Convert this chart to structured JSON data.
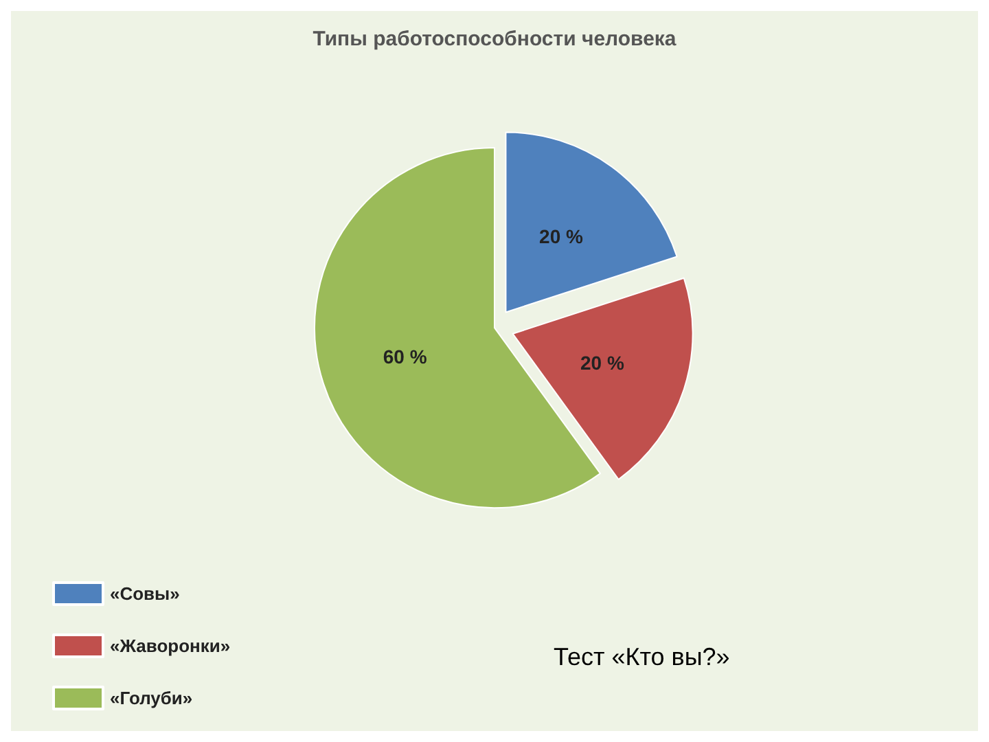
{
  "chart_data": {
    "type": "pie",
    "title": "Типы работоспособности человека",
    "categories": [
      "«Совы»",
      "«Жаворонки»",
      "«Голуби»"
    ],
    "values": [
      20,
      20,
      60
    ],
    "colors": [
      "#4f81bd",
      "#c0504d",
      "#9bbb59"
    ],
    "value_labels": [
      "20 %",
      "20 %",
      "60 %"
    ],
    "legend": "bottom left",
    "annotations": [
      "Тест «Кто вы?»"
    ]
  }
}
